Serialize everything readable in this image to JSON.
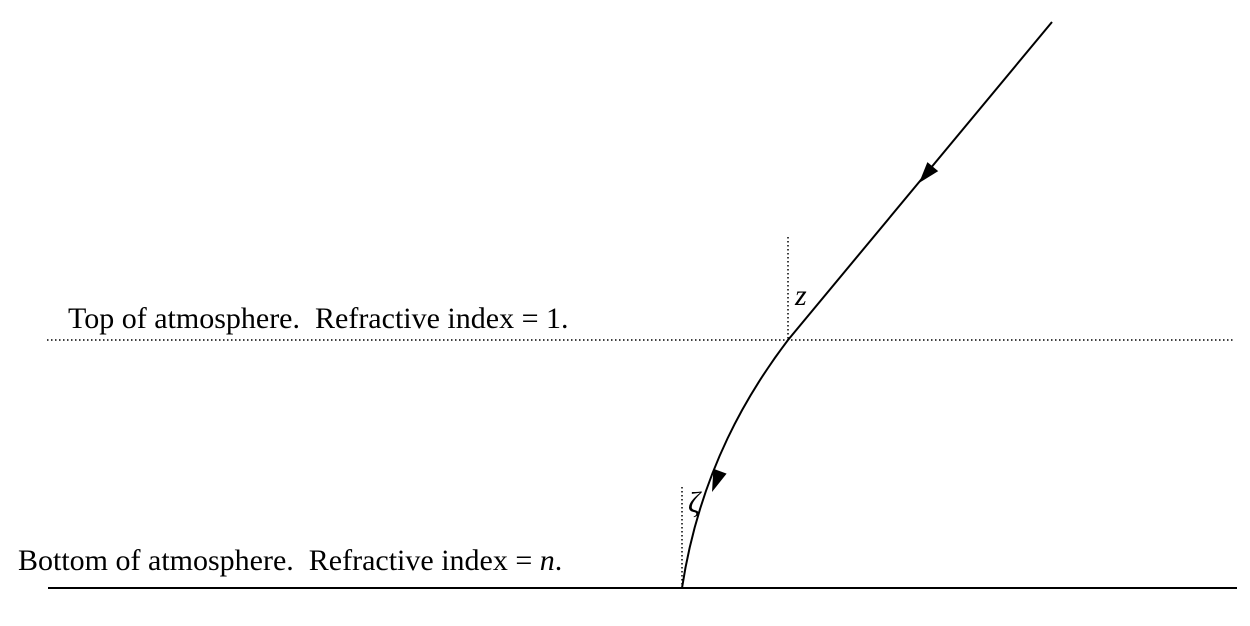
{
  "top_label": {
    "text": "Top of atmosphere.  Refractive index = 1."
  },
  "bottom_label": {
    "text": "Bottom of atmosphere.  Refractive index = ",
    "variable": "n",
    "end": "."
  },
  "angles": {
    "incident": "z",
    "refracted": "ζ"
  }
}
